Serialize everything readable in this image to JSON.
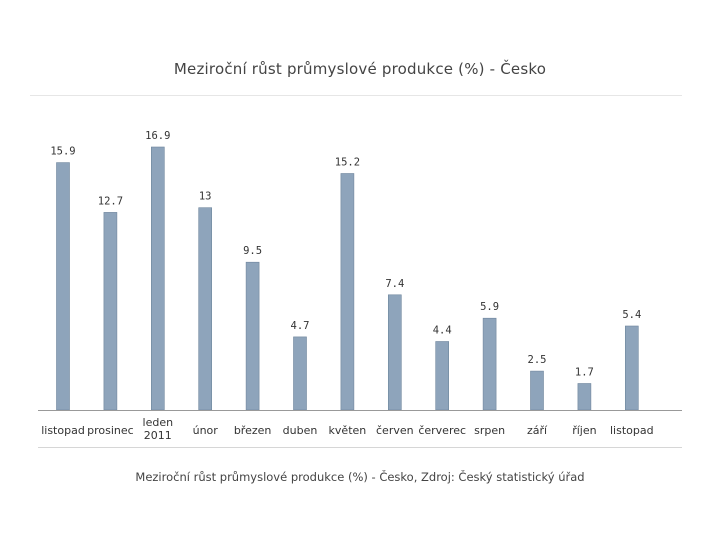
{
  "chart_data": {
    "type": "bar",
    "title": "Meziroční růst průmyslové produkce (%) - Česko",
    "caption": "Meziroční růst průmyslové produkce (%) - Česko, Zdroj: Český statistický úřad",
    "categories": [
      [
        "listopad"
      ],
      [
        "prosinec"
      ],
      [
        "leden",
        "2011"
      ],
      [
        "únor"
      ],
      [
        "březen"
      ],
      [
        "duben"
      ],
      [
        "květen"
      ],
      [
        "červen"
      ],
      [
        "červerec"
      ],
      [
        "srpen"
      ],
      [
        "září"
      ],
      [
        "říjen"
      ],
      [
        "listopad"
      ]
    ],
    "values": [
      15.9,
      12.7,
      16.9,
      13,
      9.5,
      4.7,
      15.2,
      7.4,
      4.4,
      5.9,
      2.5,
      1.7,
      5.4
    ],
    "data_labels": [
      "15.9",
      "12.7",
      "16.9",
      "13",
      "9.5",
      "4.7",
      "15.2",
      "7.4",
      "4.4",
      "5.9",
      "2.5",
      "1.7",
      "5.4"
    ],
    "ylim": [
      0,
      16.9
    ],
    "grid": false,
    "legend": "none",
    "colors": {
      "bar_fill": "#8ea4bb",
      "bar_edge": "#6e859c",
      "axis": "#999999",
      "text": "#333333"
    }
  }
}
